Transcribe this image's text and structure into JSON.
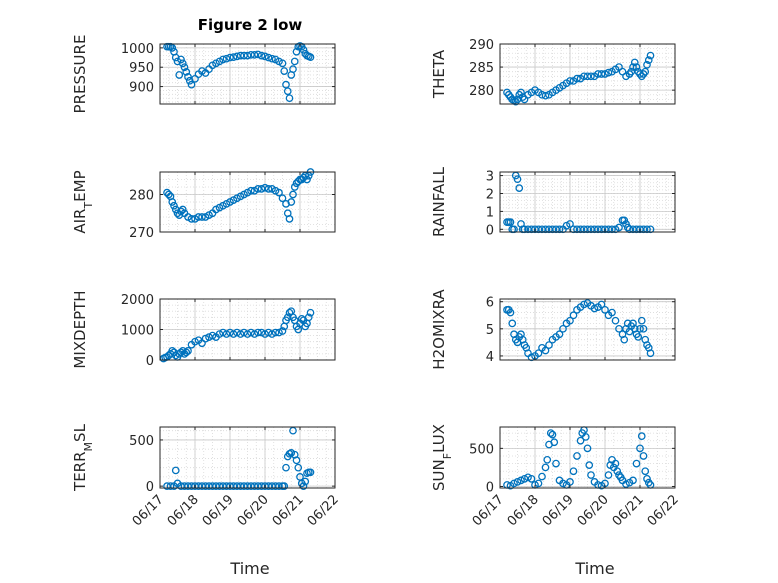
{
  "figure": {
    "title": "Figure 2 low",
    "xlabel": "Time"
  },
  "colors": {
    "marker": "#0072BD",
    "axis": "#262626",
    "grid": "#d9d9d9"
  },
  "chart_data": [
    {
      "type": "scatter",
      "title": "Figure 2 low",
      "ylabel": "PRESSURE",
      "xlim": [
        0,
        5
      ],
      "ylim": [
        855,
        1010
      ],
      "yticks": [
        900,
        950,
        1000
      ],
      "ytick_labels": [
        "900",
        "950",
        "1000"
      ],
      "xticks": [
        0,
        1,
        2,
        3,
        4,
        5
      ],
      "xtick_labels": [
        "",
        "",
        "",
        "",
        "",
        ""
      ],
      "grid": true,
      "x": [
        0.2,
        0.25,
        0.3,
        0.35,
        0.4,
        0.45,
        0.5,
        0.55,
        0.6,
        0.65,
        0.7,
        0.75,
        0.8,
        0.85,
        0.9,
        1.0,
        1.1,
        1.2,
        1.3,
        1.4,
        1.5,
        1.6,
        1.7,
        1.8,
        1.9,
        2.0,
        2.1,
        2.2,
        2.3,
        2.4,
        2.5,
        2.6,
        2.7,
        2.8,
        2.9,
        3.0,
        3.1,
        3.2,
        3.3,
        3.4,
        3.5,
        3.55,
        3.6,
        3.65,
        3.7,
        3.75,
        3.8,
        3.85,
        3.9,
        3.95,
        4.0,
        4.05,
        4.1,
        4.15,
        4.2,
        4.25,
        4.3
      ],
      "y": [
        1003,
        1003,
        1003,
        1000,
        990,
        975,
        965,
        930,
        970,
        960,
        950,
        938,
        925,
        915,
        905,
        920,
        932,
        940,
        935,
        945,
        955,
        960,
        965,
        970,
        972,
        975,
        976,
        978,
        980,
        980,
        980,
        982,
        982,
        983,
        980,
        978,
        975,
        972,
        970,
        965,
        960,
        940,
        905,
        888,
        870,
        930,
        945,
        965,
        990,
        1003,
        1005,
        1003,
        995,
        985,
        980,
        978,
        976
      ]
    },
    {
      "type": "scatter",
      "ylabel": "THETA",
      "xlim": [
        0,
        5
      ],
      "ylim": [
        277,
        290
      ],
      "yticks": [
        280,
        285,
        290
      ],
      "ytick_labels": [
        "280",
        "285",
        "290"
      ],
      "xticks": [
        0,
        1,
        2,
        3,
        4,
        5
      ],
      "xtick_labels": [
        "",
        "",
        "",
        "",
        "",
        ""
      ],
      "grid": true,
      "x": [
        0.2,
        0.25,
        0.3,
        0.35,
        0.4,
        0.45,
        0.5,
        0.55,
        0.6,
        0.65,
        0.7,
        0.8,
        0.9,
        1.0,
        1.1,
        1.2,
        1.3,
        1.4,
        1.5,
        1.6,
        1.7,
        1.8,
        1.9,
        2.0,
        2.1,
        2.2,
        2.3,
        2.4,
        2.5,
        2.6,
        2.7,
        2.8,
        2.9,
        3.0,
        3.1,
        3.2,
        3.3,
        3.4,
        3.5,
        3.6,
        3.7,
        3.75,
        3.8,
        3.85,
        3.9,
        3.95,
        4.0,
        4.05,
        4.1,
        4.15,
        4.2,
        4.25,
        4.3
      ],
      "y": [
        279.5,
        279,
        278.5,
        278,
        277.8,
        277.5,
        278,
        279,
        279.5,
        278.5,
        278,
        279,
        279.5,
        280,
        279.5,
        279,
        278.8,
        279,
        279.5,
        280,
        280.5,
        281,
        281.5,
        282,
        282,
        282.5,
        282.5,
        283,
        283,
        283,
        283,
        283.5,
        283.5,
        283.5,
        283.8,
        284,
        284.5,
        285,
        284,
        283,
        283.5,
        284,
        285,
        286,
        285,
        284,
        283.5,
        283,
        283.5,
        284,
        285.5,
        286.5,
        287.5
      ]
    },
    {
      "type": "scatter",
      "ylabel": "AIR_TEMP",
      "xlim": [
        0,
        5
      ],
      "ylim": [
        270,
        286
      ],
      "yticks": [
        270,
        280
      ],
      "ytick_labels": [
        "270",
        "280"
      ],
      "xticks": [
        0,
        1,
        2,
        3,
        4,
        5
      ],
      "xtick_labels": [
        "",
        "",
        "",
        "",
        "",
        ""
      ],
      "grid": true,
      "x": [
        0.2,
        0.25,
        0.3,
        0.35,
        0.4,
        0.45,
        0.5,
        0.55,
        0.6,
        0.65,
        0.7,
        0.8,
        0.9,
        1.0,
        1.1,
        1.2,
        1.3,
        1.4,
        1.5,
        1.6,
        1.7,
        1.8,
        1.9,
        2.0,
        2.1,
        2.2,
        2.3,
        2.4,
        2.5,
        2.6,
        2.7,
        2.8,
        2.9,
        3.0,
        3.1,
        3.2,
        3.3,
        3.4,
        3.5,
        3.6,
        3.65,
        3.7,
        3.75,
        3.8,
        3.85,
        3.9,
        3.95,
        4.0,
        4.05,
        4.1,
        4.15,
        4.2,
        4.25,
        4.3
      ],
      "y": [
        280.5,
        280,
        279.5,
        278,
        277,
        276,
        275,
        274.5,
        275.5,
        276,
        275,
        274,
        273.5,
        273.5,
        274,
        274,
        274,
        274.5,
        275,
        276,
        276.5,
        277,
        277.5,
        278,
        278.5,
        279,
        279.5,
        280,
        280.5,
        281,
        281,
        281.5,
        281.5,
        281.8,
        281.5,
        281.5,
        281,
        280.5,
        279,
        277.5,
        275,
        273.5,
        278,
        280,
        282,
        283,
        283.5,
        284,
        284,
        284.5,
        285,
        284,
        285,
        286
      ]
    },
    {
      "type": "scatter",
      "ylabel": "RAINFALL",
      "xlim": [
        0,
        5
      ],
      "ylim": [
        -0.15,
        3.2
      ],
      "yticks": [
        0,
        1,
        2,
        3
      ],
      "ytick_labels": [
        "0",
        "1",
        "2",
        "3"
      ],
      "xticks": [
        0,
        1,
        2,
        3,
        4,
        5
      ],
      "xtick_labels": [
        "",
        "",
        "",
        "",
        "",
        ""
      ],
      "grid": true,
      "x": [
        0.2,
        0.25,
        0.3,
        0.35,
        0.4,
        0.45,
        0.5,
        0.55,
        0.6,
        0.65,
        0.7,
        0.8,
        0.9,
        1.0,
        1.1,
        1.2,
        1.3,
        1.4,
        1.5,
        1.6,
        1.7,
        1.8,
        1.9,
        2.0,
        2.1,
        2.2,
        2.3,
        2.4,
        2.5,
        2.6,
        2.7,
        2.8,
        2.9,
        3.0,
        3.1,
        3.2,
        3.3,
        3.4,
        3.5,
        3.55,
        3.6,
        3.65,
        3.7,
        3.8,
        3.9,
        4.0,
        4.1,
        4.2,
        4.3
      ],
      "y": [
        0.4,
        0.4,
        0.4,
        0,
        0,
        3,
        2.8,
        2.3,
        0.3,
        0,
        0,
        0,
        0,
        0,
        0,
        0,
        0,
        0,
        0,
        0,
        0,
        0,
        0.2,
        0.3,
        0,
        0,
        0,
        0,
        0,
        0,
        0,
        0,
        0,
        0,
        0,
        0,
        0,
        0.1,
        0.5,
        0.5,
        0.3,
        0.1,
        0,
        0,
        0,
        0,
        0,
        0,
        0
      ]
    },
    {
      "type": "scatter",
      "ylabel": "MIXDEPTH",
      "xlim": [
        0,
        5
      ],
      "ylim": [
        0,
        2000
      ],
      "yticks": [
        0,
        1000,
        2000
      ],
      "ytick_labels": [
        "0",
        "1000",
        "2000"
      ],
      "xticks": [
        0,
        1,
        2,
        3,
        4,
        5
      ],
      "xtick_labels": [
        "",
        "",
        "",
        "",
        "",
        ""
      ],
      "grid": true,
      "x": [
        0.1,
        0.15,
        0.2,
        0.25,
        0.3,
        0.35,
        0.4,
        0.45,
        0.5,
        0.55,
        0.6,
        0.65,
        0.7,
        0.75,
        0.8,
        0.9,
        1.0,
        1.1,
        1.2,
        1.3,
        1.4,
        1.5,
        1.6,
        1.7,
        1.8,
        1.9,
        2.0,
        2.1,
        2.2,
        2.3,
        2.4,
        2.5,
        2.6,
        2.7,
        2.8,
        2.9,
        3.0,
        3.1,
        3.2,
        3.3,
        3.4,
        3.5,
        3.55,
        3.6,
        3.65,
        3.7,
        3.75,
        3.8,
        3.85,
        3.9,
        3.95,
        4.0,
        4.05,
        4.1,
        4.15,
        4.2,
        4.25,
        4.3
      ],
      "y": [
        50,
        80,
        100,
        150,
        200,
        300,
        250,
        150,
        100,
        200,
        250,
        300,
        200,
        250,
        300,
        500,
        600,
        650,
        550,
        700,
        750,
        800,
        750,
        850,
        900,
        850,
        900,
        850,
        900,
        850,
        900,
        850,
        900,
        850,
        900,
        900,
        850,
        900,
        850,
        900,
        900,
        950,
        1100,
        1300,
        1400,
        1550,
        1600,
        1400,
        1300,
        1100,
        1000,
        1200,
        1350,
        1300,
        1100,
        1200,
        1400,
        1550
      ]
    },
    {
      "type": "scatter",
      "ylabel": "H2OMIXRA",
      "xlim": [
        0,
        5
      ],
      "ylim": [
        3.85,
        6.1
      ],
      "yticks": [
        4,
        5,
        6
      ],
      "ytick_labels": [
        "4",
        "5",
        "6"
      ],
      "xticks": [
        0,
        1,
        2,
        3,
        4,
        5
      ],
      "xtick_labels": [
        "",
        "",
        "",
        "",
        "",
        ""
      ],
      "grid": true,
      "x": [
        0.2,
        0.25,
        0.3,
        0.35,
        0.4,
        0.45,
        0.5,
        0.55,
        0.6,
        0.65,
        0.7,
        0.75,
        0.8,
        0.9,
        1.0,
        1.1,
        1.2,
        1.3,
        1.4,
        1.5,
        1.6,
        1.7,
        1.8,
        1.9,
        2.0,
        2.1,
        2.2,
        2.3,
        2.4,
        2.5,
        2.6,
        2.7,
        2.8,
        2.9,
        3.0,
        3.1,
        3.2,
        3.3,
        3.4,
        3.5,
        3.55,
        3.6,
        3.65,
        3.7,
        3.75,
        3.8,
        3.85,
        3.9,
        3.95,
        4.0,
        4.05,
        4.1,
        4.15,
        4.2,
        4.25,
        4.3
      ],
      "y": [
        5.7,
        5.7,
        5.6,
        5.2,
        4.8,
        4.6,
        4.5,
        4.7,
        4.8,
        4.6,
        4.4,
        4.3,
        4.1,
        3.95,
        4.0,
        4.1,
        4.3,
        4.2,
        4.4,
        4.6,
        4.7,
        4.8,
        5.0,
        5.2,
        5.3,
        5.5,
        5.7,
        5.8,
        5.9,
        5.95,
        5.85,
        5.75,
        5.8,
        5.9,
        5.7,
        5.5,
        5.6,
        5.3,
        5.0,
        4.8,
        4.6,
        5.0,
        5.2,
        4.9,
        5.1,
        5.2,
        5.0,
        4.8,
        4.7,
        5.0,
        5.3,
        5.0,
        4.6,
        4.4,
        4.3,
        4.1
      ]
    },
    {
      "type": "scatter",
      "ylabel": "TERR_MSL",
      "xlim": [
        0,
        5
      ],
      "ylim": [
        -20,
        640
      ],
      "yticks": [
        0,
        500
      ],
      "ytick_labels": [
        "0",
        "500"
      ],
      "xticks": [
        0,
        1,
        2,
        3,
        4,
        5
      ],
      "xtick_labels": [
        "06/17",
        "06/18",
        "06/19",
        "06/20",
        "06/21",
        "06/22"
      ],
      "grid": true,
      "x": [
        0.2,
        0.3,
        0.4,
        0.45,
        0.5,
        0.6,
        0.7,
        0.8,
        0.9,
        1.0,
        1.1,
        1.2,
        1.3,
        1.4,
        1.5,
        1.6,
        1.7,
        1.8,
        1.9,
        2.0,
        2.1,
        2.2,
        2.3,
        2.4,
        2.5,
        2.6,
        2.7,
        2.8,
        2.9,
        3.0,
        3.1,
        3.2,
        3.3,
        3.4,
        3.5,
        3.55,
        3.6,
        3.65,
        3.7,
        3.75,
        3.8,
        3.85,
        3.9,
        3.95,
        4.0,
        4.05,
        4.1,
        4.15,
        4.2,
        4.25,
        4.3
      ],
      "y": [
        0,
        0,
        0,
        170,
        30,
        0,
        0,
        0,
        0,
        0,
        0,
        0,
        0,
        0,
        0,
        0,
        0,
        0,
        0,
        0,
        0,
        0,
        0,
        0,
        0,
        0,
        0,
        0,
        0,
        0,
        0,
        0,
        0,
        0,
        0,
        0,
        200,
        320,
        350,
        360,
        600,
        340,
        280,
        200,
        100,
        30,
        0,
        50,
        140,
        150,
        150
      ]
    },
    {
      "type": "scatter",
      "ylabel": "SUN_FLUX",
      "xlim": [
        0,
        5
      ],
      "ylim": [
        -20,
        780
      ],
      "yticks": [
        0,
        500
      ],
      "ytick_labels": [
        "0",
        "500"
      ],
      "xticks": [
        0,
        1,
        2,
        3,
        4,
        5
      ],
      "xtick_labels": [
        "06/17",
        "06/18",
        "06/19",
        "06/20",
        "06/21",
        "06/22"
      ],
      "grid": true,
      "x": [
        0.2,
        0.3,
        0.4,
        0.5,
        0.6,
        0.7,
        0.8,
        0.9,
        1.0,
        1.1,
        1.2,
        1.3,
        1.35,
        1.4,
        1.45,
        1.5,
        1.55,
        1.6,
        1.7,
        1.8,
        1.9,
        2.0,
        2.1,
        2.2,
        2.3,
        2.35,
        2.4,
        2.45,
        2.5,
        2.55,
        2.6,
        2.7,
        2.8,
        2.9,
        3.0,
        3.1,
        3.15,
        3.2,
        3.25,
        3.3,
        3.35,
        3.4,
        3.45,
        3.5,
        3.6,
        3.7,
        3.8,
        3.9,
        4.0,
        4.05,
        4.1,
        4.15,
        4.2,
        4.25,
        4.3
      ],
      "y": [
        20,
        10,
        40,
        60,
        80,
        100,
        120,
        100,
        20,
        40,
        130,
        250,
        350,
        550,
        700,
        680,
        580,
        300,
        80,
        40,
        20,
        60,
        200,
        400,
        600,
        700,
        740,
        650,
        500,
        280,
        150,
        60,
        20,
        10,
        40,
        150,
        280,
        350,
        250,
        300,
        200,
        150,
        120,
        80,
        30,
        50,
        80,
        300,
        500,
        660,
        400,
        200,
        100,
        50,
        20
      ]
    }
  ]
}
